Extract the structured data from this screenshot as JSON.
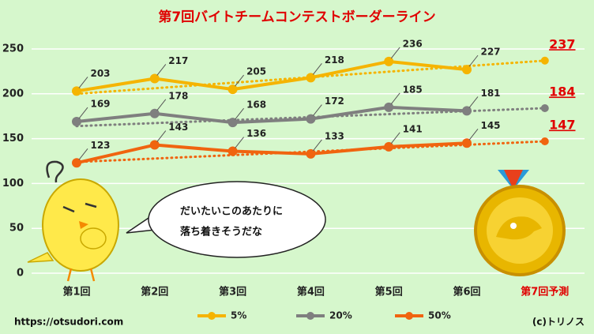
{
  "chart_data": {
    "type": "line",
    "title": "第7回バイトチームコンテストボーダーライン",
    "categories": [
      "第1回",
      "第2回",
      "第3回",
      "第4回",
      "第5回",
      "第6回",
      "第7回予測"
    ],
    "series": [
      {
        "name": "5%",
        "color": "#f5b400",
        "values": [
          203,
          217,
          205,
          218,
          236,
          227,
          null
        ],
        "trend_start": 200,
        "forecast": 237
      },
      {
        "name": "20%",
        "color": "#7f7f7f",
        "values": [
          169,
          178,
          168,
          172,
          185,
          181,
          null
        ],
        "trend_start": 164,
        "forecast": 184
      },
      {
        "name": "50%",
        "color": "#f0640f",
        "values": [
          123,
          143,
          136,
          133,
          141,
          145,
          null
        ],
        "trend_start": 124,
        "forecast": 147
      }
    ],
    "forecast_color": "#e00000",
    "ylim": [
      0,
      250
    ],
    "yticks": [
      0,
      50,
      100,
      150,
      200,
      250
    ],
    "grid": true,
    "legend": "bottom",
    "annotations": [
      "だいたいこのあたりに",
      "落ち着きそうだな"
    ],
    "source": "https://otsudori.com",
    "credit": "(c)トリノス"
  }
}
